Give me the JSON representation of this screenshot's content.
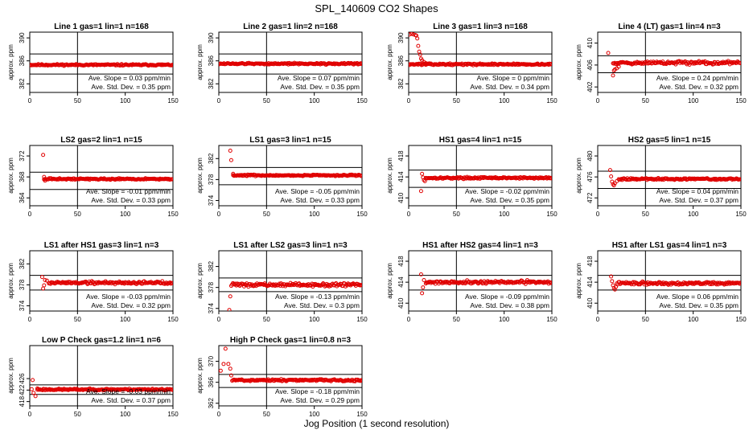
{
  "figure": {
    "title": "SPL_140609  CO2 Shapes",
    "xlabel": "Jog Position (1 second resolution)"
  },
  "chart_data": [
    {
      "type": "scatter",
      "title": "Line 1 gas=1 lin=1 n=168",
      "ylabel": "approx. ppm",
      "xlim": [
        0,
        150
      ],
      "ylim": [
        380.5,
        391
      ],
      "xticks": [
        0,
        50,
        100,
        150
      ],
      "yticks": [
        382,
        386,
        390
      ],
      "vline": 50,
      "hlines": [
        387.2,
        383.7
      ],
      "base": 385.3,
      "noise": 0.1,
      "x_start": 0,
      "x_end": 150,
      "transient": [],
      "spikes": [],
      "slope_text": "Ave. Slope = 0.03 ppm/min",
      "std_text": "Ave. Std. Dev. = 0.35 ppm",
      "seed": 11
    },
    {
      "type": "scatter",
      "title": "Line 2 gas=1 lin=2 n=168",
      "ylabel": "approx. ppm",
      "xlim": [
        0,
        150
      ],
      "ylim": [
        380.5,
        391
      ],
      "xticks": [
        0,
        50,
        100,
        150
      ],
      "yticks": [
        382,
        386,
        390
      ],
      "vline": 50,
      "hlines": [
        387.2,
        383.7
      ],
      "base": 385.5,
      "noise": 0.1,
      "x_start": 0,
      "x_end": 150,
      "transient": [],
      "spikes": [],
      "slope_text": "Ave. Slope = 0.07 ppm/min",
      "std_text": "Ave. Std. Dev. = 0.35 ppm",
      "seed": 12
    },
    {
      "type": "scatter",
      "title": "Line 3 gas=1 lin=3 n=168",
      "ylabel": "approx. ppm",
      "xlim": [
        0,
        150
      ],
      "ylim": [
        380.5,
        391
      ],
      "xticks": [
        0,
        50,
        100,
        150
      ],
      "yticks": [
        382,
        386,
        390
      ],
      "vline": 50,
      "hlines": [
        387.2,
        383.7
      ],
      "base": 385.4,
      "noise": 0.1,
      "x_start": 0,
      "x_end": 150,
      "transient": [
        [
          1,
          390.6
        ],
        [
          3,
          390.7
        ],
        [
          5,
          390.6
        ],
        [
          7,
          390.5
        ],
        [
          8,
          390.4
        ],
        [
          9,
          389.9
        ],
        [
          10,
          388.6
        ],
        [
          11,
          387.6
        ],
        [
          12,
          387.1
        ],
        [
          13,
          386.4
        ],
        [
          14,
          386.1
        ],
        [
          16,
          385.8
        ],
        [
          18,
          385.6
        ],
        [
          20,
          385.5
        ]
      ],
      "spikes": [],
      "slope_text": "Ave. Slope = 0 ppm/min",
      "std_text": "Ave. Std. Dev. = 0.34 ppm",
      "seed": 13
    },
    {
      "type": "scatter",
      "title": "Line 4 (LT) gas=1 lin=4 n=3",
      "ylabel": "approx. ppm",
      "xlim": [
        0,
        150
      ],
      "ylim": [
        401,
        412
      ],
      "xticks": [
        0,
        50,
        100,
        150
      ],
      "yticks": [
        402,
        406,
        410
      ],
      "vline": 50,
      "hlines": [
        407.7,
        404.6
      ],
      "base": 406.4,
      "noise": 0.22,
      "x_start": 16,
      "x_end": 150,
      "transient": [
        [
          11,
          408.2
        ],
        [
          16,
          404.1
        ],
        [
          17,
          405.0
        ],
        [
          18,
          405.2
        ],
        [
          20,
          405.4
        ],
        [
          22,
          405.7
        ]
      ],
      "spikes": [],
      "slope_text": "Ave. Slope = 0.24 ppm/min",
      "std_text": "Ave. Std. Dev. = 0.32 ppm",
      "seed": 14
    },
    {
      "type": "scatter",
      "title": "LS2 gas=2 lin=1 n=15",
      "ylabel": "approx. ppm",
      "xlim": [
        0,
        150
      ],
      "ylim": [
        362.5,
        374
      ],
      "xticks": [
        0,
        50,
        100,
        150
      ],
      "yticks": [
        364,
        368,
        372
      ],
      "vline": 50,
      "hlines": [
        368.9,
        365.6
      ],
      "base": 367.6,
      "noise": 0.1,
      "x_start": 15,
      "x_end": 150,
      "transient": [
        [
          14,
          372.2
        ],
        [
          15,
          368.0
        ],
        [
          16,
          367.3
        ]
      ],
      "spikes": [],
      "slope_text": "Ave. Slope = -0.01 ppm/min",
      "std_text": "Ave. Std. Dev. = 0.33 ppm",
      "seed": 15
    },
    {
      "type": "scatter",
      "title": "LS1 gas=3 lin=1 n=15",
      "ylabel": "approx. ppm",
      "xlim": [
        0,
        150
      ],
      "ylim": [
        373,
        384.5
      ],
      "xticks": [
        0,
        50,
        100,
        150
      ],
      "yticks": [
        374,
        378,
        382
      ],
      "vline": 50,
      "hlines": [
        380.3,
        377.0
      ],
      "base": 378.8,
      "noise": 0.1,
      "x_start": 15,
      "x_end": 150,
      "transient": [
        [
          12,
          383.5
        ],
        [
          13,
          381.7
        ],
        [
          15,
          379.1
        ]
      ],
      "spikes": [],
      "slope_text": "Ave. Slope = -0.05 ppm/min",
      "std_text": "Ave. Std. Dev. = 0.33 ppm",
      "seed": 16
    },
    {
      "type": "scatter",
      "title": "HS1 gas=4 lin=1 n=15",
      "ylabel": "approx. ppm",
      "xlim": [
        0,
        150
      ],
      "ylim": [
        408.5,
        420
      ],
      "xticks": [
        0,
        50,
        100,
        150
      ],
      "yticks": [
        410,
        414,
        418
      ],
      "vline": 50,
      "hlines": [
        415.3,
        412.0
      ],
      "base": 413.8,
      "noise": 0.12,
      "x_start": 18,
      "x_end": 150,
      "transient": [
        [
          13,
          411.3
        ],
        [
          14,
          414.6
        ],
        [
          15,
          413.9
        ],
        [
          16,
          413.4
        ],
        [
          17,
          413.2
        ]
      ],
      "spikes": [],
      "slope_text": "Ave. Slope = -0.02 ppm/min",
      "std_text": "Ave. Std. Dev. = 0.35 ppm",
      "seed": 17
    },
    {
      "type": "scatter",
      "title": "HS2 gas=5 lin=1 n=15",
      "ylabel": "approx. ppm",
      "xlim": [
        0,
        150
      ],
      "ylim": [
        470.5,
        482
      ],
      "xticks": [
        0,
        50,
        100,
        150
      ],
      "yticks": [
        472,
        476,
        480
      ],
      "vline": 50,
      "hlines": [
        477.1,
        473.8
      ],
      "base": 475.6,
      "noise": 0.12,
      "x_start": 22,
      "x_end": 150,
      "transient": [
        [
          13,
          477.3
        ],
        [
          14,
          476.1
        ],
        [
          15,
          475.1
        ],
        [
          16,
          474.6
        ],
        [
          17,
          474.4
        ],
        [
          18,
          474.8
        ],
        [
          20,
          475.2
        ]
      ],
      "spikes": [],
      "slope_text": "Ave. Slope = 0.04 ppm/min",
      "std_text": "Ave. Std. Dev. = 0.37 ppm",
      "seed": 18
    },
    {
      "type": "scatter",
      "title": "LS1 after HS1 gas=3 lin=1 n=3",
      "ylabel": "approx. ppm",
      "xlim": [
        0,
        150
      ],
      "ylim": [
        373,
        384.5
      ],
      "xticks": [
        0,
        50,
        100,
        150
      ],
      "yticks": [
        374,
        378,
        382
      ],
      "vline": 50,
      "hlines": [
        379.8,
        377.0
      ],
      "base": 378.4,
      "noise": 0.22,
      "x_start": 20,
      "x_end": 150,
      "transient": [
        [
          13,
          379.5
        ],
        [
          14,
          377.3
        ],
        [
          15,
          377.9
        ],
        [
          16,
          378.9
        ],
        [
          18,
          378.8
        ]
      ],
      "spikes": [],
      "slope_text": "Ave. Slope = -0.03 ppm/min",
      "std_text": "Ave. Std. Dev. = 0.32 ppm",
      "seed": 19
    },
    {
      "type": "scatter",
      "title": "LS1 after LS2 gas=3 lin=1 n=3",
      "ylabel": "approx. ppm",
      "xlim": [
        0,
        150
      ],
      "ylim": [
        373.5,
        385
      ],
      "xticks": [
        0,
        50,
        100,
        150
      ],
      "yticks": [
        374,
        378,
        382
      ],
      "vline": 50,
      "hlines": [
        379.8,
        377.2
      ],
      "base": 378.5,
      "noise": 0.22,
      "x_start": 13,
      "x_end": 150,
      "transient": [
        [
          12,
          376.3
        ],
        [
          11,
          373.7
        ]
      ],
      "spikes": [],
      "slope_text": "Ave. Slope = -0.13 ppm/min",
      "std_text": "Ave. Std. Dev. = 0.3 ppm",
      "seed": 20
    },
    {
      "type": "scatter",
      "title": "HS1 after HS2 gas=4 lin=1 n=3",
      "ylabel": "approx. ppm",
      "xlim": [
        0,
        150
      ],
      "ylim": [
        408.5,
        420
      ],
      "xticks": [
        0,
        50,
        100,
        150
      ],
      "yticks": [
        410,
        414,
        418
      ],
      "vline": 50,
      "hlines": [
        415.3,
        412.5
      ],
      "base": 414.0,
      "noise": 0.22,
      "x_start": 18,
      "x_end": 150,
      "transient": [
        [
          13,
          415.5
        ],
        [
          14,
          411.9
        ],
        [
          15,
          413.0
        ],
        [
          16,
          414.4
        ]
      ],
      "spikes": [],
      "slope_text": "Ave. Slope = -0.09 ppm/min",
      "std_text": "Ave. Std. Dev. = 0.38 ppm",
      "seed": 21
    },
    {
      "type": "scatter",
      "title": "HS1 after LS1 gas=4 lin=1 n=3",
      "ylabel": "approx. ppm",
      "xlim": [
        0,
        150
      ],
      "ylim": [
        408.5,
        420
      ],
      "xticks": [
        0,
        50,
        100,
        150
      ],
      "yticks": [
        410,
        414,
        418
      ],
      "vline": 50,
      "hlines": [
        415.3,
        412.5
      ],
      "base": 413.8,
      "noise": 0.2,
      "x_start": 20,
      "x_end": 150,
      "transient": [
        [
          14,
          415.1
        ],
        [
          15,
          414.2
        ],
        [
          16,
          413.4
        ],
        [
          17,
          412.9
        ],
        [
          18,
          412.6
        ],
        [
          19,
          413.1
        ]
      ],
      "spikes": [],
      "slope_text": "Ave. Slope = 0.06 ppm/min",
      "std_text": "Ave. Std. Dev. = 0.35 ppm",
      "seed": 22
    },
    {
      "type": "scatter",
      "title": "Low P Check gas=1.2 lin=1 n=6",
      "ylabel": "approx. ppm",
      "xlim": [
        0,
        150
      ],
      "ylim": [
        416.5,
        437.5
      ],
      "xticks": [
        0,
        50,
        100,
        150
      ],
      "yticks": [
        418,
        422,
        426
      ],
      "vline": 50,
      "hlines": [
        423.8,
        420.5
      ],
      "base": 422.2,
      "noise": 0.22,
      "x_start": 8,
      "x_end": 150,
      "transient": [
        [
          3,
          425.5
        ],
        [
          2,
          422.3
        ],
        [
          4,
          421.0
        ],
        [
          6,
          419.9
        ],
        [
          8,
          422.6
        ]
      ],
      "spikes": [],
      "slope_text": "Ave. Slope = -0.03 ppm/min",
      "std_text": "Ave. Std. Dev. = 0.37 ppm",
      "seed": 23
    },
    {
      "type": "scatter",
      "title": "High P Check gas=1 lin=0.8 n=3",
      "ylabel": "approx. ppm",
      "xlim": [
        0,
        150
      ],
      "ylim": [
        361.5,
        373
      ],
      "xticks": [
        0,
        50,
        100,
        150
      ],
      "yticks": [
        362,
        366,
        370
      ],
      "vline": 50,
      "hlines": [
        367.5,
        365.0
      ],
      "base": 366.4,
      "noise": 0.15,
      "x_start": 14,
      "x_end": 150,
      "transient": [
        [
          7,
          372.4
        ],
        [
          2,
          368.2
        ],
        [
          5,
          369.5
        ],
        [
          10,
          369.5
        ],
        [
          12,
          368.6
        ],
        [
          13,
          367.3
        ]
      ],
      "spikes": [],
      "slope_text": "Ave. Slope = -0.18 ppm/min",
      "std_text": "Ave. Std. Dev. = 0.29 ppm",
      "seed": 24
    }
  ]
}
